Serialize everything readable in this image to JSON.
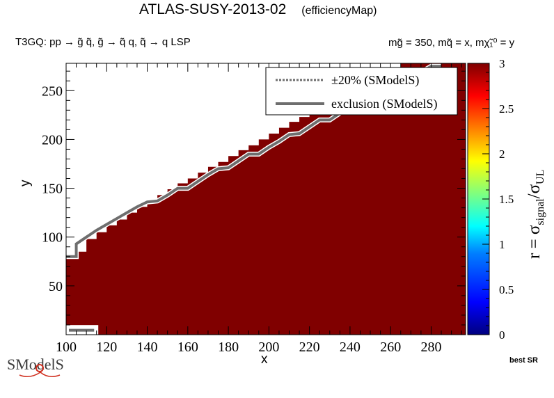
{
  "header": {
    "title": "ATLAS-SUSY-2013-02",
    "subtitle": "(efficiencyMap)",
    "process": "T3GQ: pp → g̃ q̃, g̃ → q̃ q, q̃ → q LSP",
    "masses": "mg̃ = 350, mq̃ = x, mχ̃₁⁰ = y"
  },
  "footer": {
    "best_sr": "best SR",
    "logo_text": "SModelS"
  },
  "colors": {
    "fill": "#800000",
    "exclusion_line": "#6e6e6e",
    "palette": [
      "#00007f",
      "#0000ff",
      "#007fff",
      "#00ffff",
      "#7fff7f",
      "#ffff00",
      "#ff7f00",
      "#ff0000",
      "#7f0000"
    ]
  },
  "chart_data": {
    "type": "heatmap",
    "title": "ATLAS-SUSY-2013-02",
    "xlabel": "x",
    "ylabel": "y",
    "zlabel": "r = σsignal/σUL",
    "xlim": [
      100,
      297
    ],
    "ylim": [
      0,
      278
    ],
    "zlim": [
      0,
      3
    ],
    "x_ticks": [
      "100",
      "120",
      "140",
      "160",
      "180",
      "200",
      "220",
      "240",
      "260",
      "280"
    ],
    "y_ticks": [
      "50",
      "100",
      "150",
      "200",
      "250"
    ],
    "z_ticks": [
      "0",
      "0.5",
      "1",
      "1.5",
      "2",
      "2.5",
      "3"
    ],
    "legend": {
      "position": "top-right",
      "entries": [
        {
          "label": "±20% (SModelS)",
          "style": "dotted"
        },
        {
          "label": "exclusion (SModelS)",
          "style": "solid"
        }
      ]
    },
    "filled_region": {
      "description_value": 3,
      "upper_edge": {
        "x": [
          100,
          105,
          110,
          115,
          120,
          125,
          130,
          135,
          140,
          145,
          150,
          155,
          160,
          165,
          170,
          175,
          180,
          185,
          190,
          195,
          200,
          205,
          210,
          215,
          220,
          225,
          230,
          235,
          240,
          245,
          250,
          255,
          260,
          265,
          270,
          275,
          280,
          285,
          290,
          297
        ],
        "y": [
          78,
          85,
          98,
          105,
          112,
          118,
          125,
          131,
          138,
          143,
          149,
          155,
          160,
          166,
          172,
          177,
          183,
          189,
          194,
          200,
          206,
          212,
          218,
          223,
          229,
          235,
          240,
          246,
          252,
          257,
          263,
          269,
          274,
          278,
          278,
          278,
          278,
          278,
          278,
          278
        ]
      }
    },
    "exclusion_line": {
      "x": [
        100,
        105,
        105,
        110,
        115,
        120,
        125,
        130,
        135,
        140,
        145,
        150,
        155,
        160,
        165,
        170,
        175,
        180,
        185,
        190,
        195,
        200,
        205,
        210,
        215,
        220,
        225,
        230,
        235,
        240,
        245,
        250,
        255,
        260,
        265,
        270,
        275,
        280,
        285
      ],
      "y": [
        80,
        80,
        93,
        100,
        107,
        113,
        119,
        125,
        131,
        136,
        137,
        143,
        150,
        150,
        157,
        164,
        170,
        171,
        178,
        185,
        185,
        192,
        198,
        205,
        206,
        213,
        220,
        220,
        227,
        234,
        240,
        241,
        248,
        255,
        262,
        263,
        269,
        275,
        275
      ]
    },
    "small_box": {
      "x": [
        100,
        109
      ],
      "y": [
        2,
        7
      ]
    }
  }
}
